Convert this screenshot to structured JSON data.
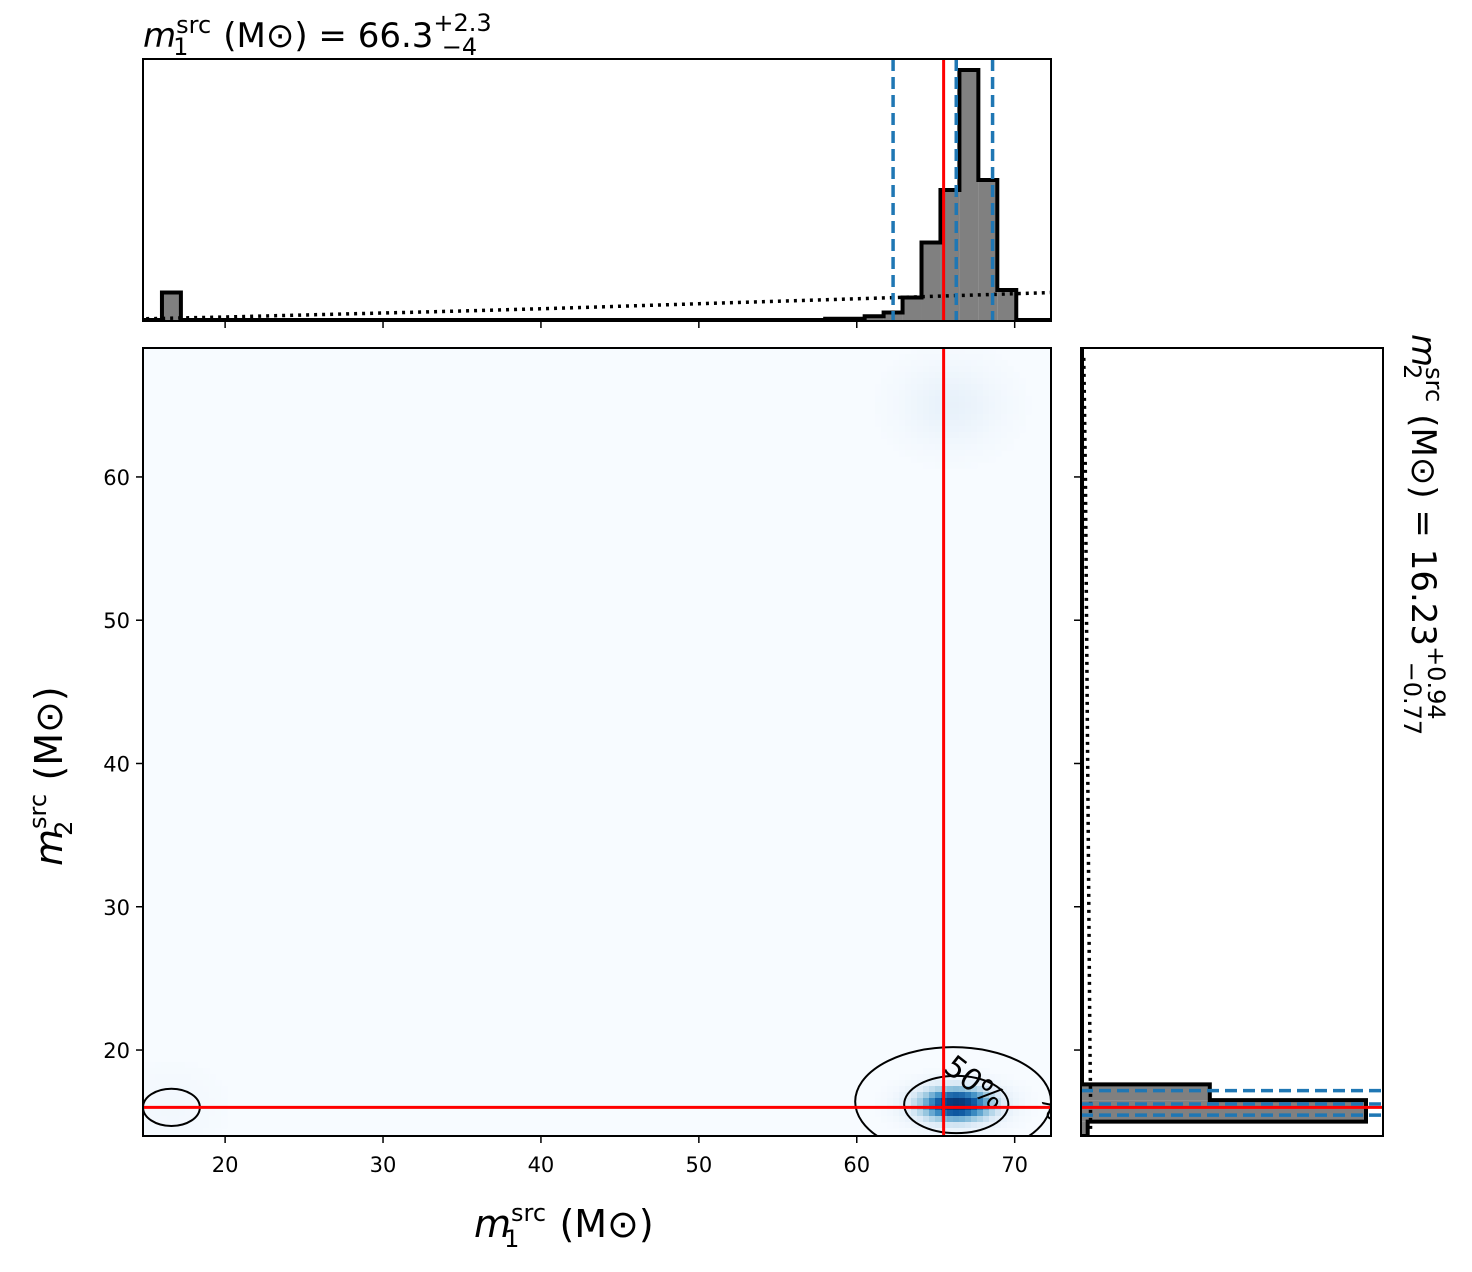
{
  "chart_data": {
    "type": "corner-plot",
    "panels": [
      {
        "name": "m1-marginal",
        "type": "histogram",
        "title": {
          "symbol": "m",
          "sub": "1",
          "sup": "src",
          "unit": " (M⊙) = 66.3",
          "plus": "+2.3",
          "minus": "−4"
        },
        "xlim": [
          14.8,
          72.3
        ],
        "bin_edges": [
          14.8,
          16.0,
          17.2,
          18.4,
          58.0,
          60.5,
          61.7,
          62.9,
          64.1,
          65.3,
          66.5,
          67.7,
          68.9,
          70.1,
          72.3
        ],
        "densities": [
          0.0,
          0.11,
          0.0,
          0.0,
          0.005,
          0.015,
          0.03,
          0.09,
          0.31,
          0.52,
          1.0,
          0.56,
          0.12,
          0.0
        ],
        "median": 66.3,
        "lower": 62.3,
        "upper": 68.6,
        "truth": 65.5,
        "prior_curve": {
          "x": [
            15,
            20,
            25,
            30,
            35,
            40,
            45,
            50,
            55,
            60,
            65,
            70,
            72.3
          ],
          "y": [
            0.005,
            0.012,
            0.02,
            0.028,
            0.036,
            0.045,
            0.055,
            0.065,
            0.075,
            0.085,
            0.095,
            0.105,
            0.11
          ]
        }
      },
      {
        "name": "joint",
        "type": "density-2d",
        "xlabel": {
          "symbol": "m",
          "sub": "1",
          "sup": "src",
          "unit": " (M⊙)"
        },
        "ylabel": {
          "symbol": "m",
          "sub": "2",
          "sup": "src",
          "unit": " (M⊙)"
        },
        "xlim": [
          14.8,
          72.3
        ],
        "ylim": [
          14.0,
          69.0
        ],
        "xticks": [
          "20",
          "30",
          "40",
          "50",
          "60",
          "70"
        ],
        "yticks": [
          "20",
          "30",
          "40",
          "50",
          "60"
        ],
        "modes": [
          {
            "x": 66.3,
            "y": 16.2,
            "weight": 1.0
          },
          {
            "x": 66.0,
            "y": 65.0,
            "weight": 0.12
          },
          {
            "x": 16.6,
            "y": 16.0,
            "weight": 0.04
          }
        ],
        "contour_labels": [
          "50%",
          "%"
        ],
        "truth": {
          "x": 65.5,
          "y": 16.0
        },
        "colormap": "Blues"
      },
      {
        "name": "m2-marginal",
        "type": "histogram",
        "orientation": "horizontal",
        "title": {
          "symbol": "m",
          "sub": "2",
          "sup": "src",
          "unit": " (M⊙) = 16.23",
          "plus": "+0.94",
          "minus": "−0.77"
        },
        "ylim": [
          14.0,
          69.0
        ],
        "bin_edges": [
          14.0,
          15.0,
          16.5,
          17.6,
          69.0
        ],
        "densities": [
          0.02,
          1.0,
          0.45,
          0.0
        ],
        "median": 16.23,
        "lower": 15.46,
        "upper": 17.17,
        "truth": 16.0,
        "prior_curve": {
          "y": [
            14.5,
            17,
            20,
            30,
            40,
            50,
            60,
            66,
            68.6
          ],
          "x": [
            0.03,
            0.03,
            0.028,
            0.024,
            0.02,
            0.016,
            0.012,
            0.008,
            0.006
          ]
        }
      }
    ]
  }
}
